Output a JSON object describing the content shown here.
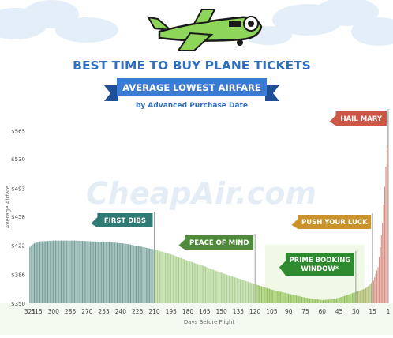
{
  "header": {
    "title": "BEST TIME TO BUY PLANE TICKETS",
    "ribbon": "AVERAGE LOWEST AIRFARE",
    "subtitle": "by Advanced Purchase Date"
  },
  "watermark": "CheapAir.com",
  "colors": {
    "title": "#2f6fc4",
    "ribbon": "#3a7bd5",
    "ribbon_dark": "#1f4f96",
    "first_dibs": "#2f7a74",
    "peace_of_mind": "#4f8a3a",
    "prime_booking": "#2e8a2e",
    "push_your_luck": "#c9922b",
    "hail_mary": "#cd5747",
    "plane_body": "#8ed65a",
    "plane_outline": "#1a1a1a"
  },
  "zones": [
    {
      "label": "FIRST DIBS",
      "x": 210,
      "color": "first_dibs"
    },
    {
      "label": "PEACE OF MIND",
      "x": 120,
      "color": "peace_of_mind"
    },
    {
      "label": "PRIME BOOKING\nWINDOW*",
      "x": 30,
      "color": "prime_booking"
    },
    {
      "label": "PUSH YOUR LUCK",
      "x": 15,
      "color": "push_your_luck"
    },
    {
      "label": "HAIL MARY",
      "x": 1,
      "color": "hail_mary"
    }
  ],
  "chart_data": {
    "type": "bar",
    "xlabel": "Days Before Flight",
    "ylabel": "Average Airfare",
    "x_reversed": true,
    "xlim": [
      321,
      1
    ],
    "ylim": [
      350,
      580
    ],
    "y_ticks": [
      "$350",
      "$386",
      "$422",
      "$458",
      "$493",
      "$530",
      "$565"
    ],
    "y_tick_values": [
      350,
      386,
      422,
      458,
      493,
      530,
      565
    ],
    "x_ticks": [
      321,
      315,
      300,
      285,
      270,
      255,
      240,
      225,
      210,
      195,
      180,
      165,
      150,
      135,
      120,
      105,
      90,
      75,
      60,
      45,
      30,
      15,
      1
    ],
    "anchors": [
      [
        321,
        420
      ],
      [
        318,
        424
      ],
      [
        312,
        427
      ],
      [
        300,
        428
      ],
      [
        280,
        428
      ],
      [
        265,
        427
      ],
      [
        250,
        426
      ],
      [
        235,
        424
      ],
      [
        220,
        420
      ],
      [
        210,
        417
      ],
      [
        195,
        411
      ],
      [
        180,
        403
      ],
      [
        165,
        396
      ],
      [
        150,
        388
      ],
      [
        135,
        381
      ],
      [
        120,
        374
      ],
      [
        105,
        367
      ],
      [
        90,
        362
      ],
      [
        75,
        357
      ],
      [
        60,
        354
      ],
      [
        50,
        355
      ],
      [
        40,
        359
      ],
      [
        30,
        364
      ],
      [
        22,
        368
      ],
      [
        18,
        372
      ],
      [
        14,
        378
      ],
      [
        10,
        395
      ],
      [
        8,
        420
      ],
      [
        6,
        450
      ],
      [
        4,
        495
      ],
      [
        3,
        520
      ],
      [
        2,
        545
      ],
      [
        1,
        585
      ]
    ],
    "grid": false
  }
}
